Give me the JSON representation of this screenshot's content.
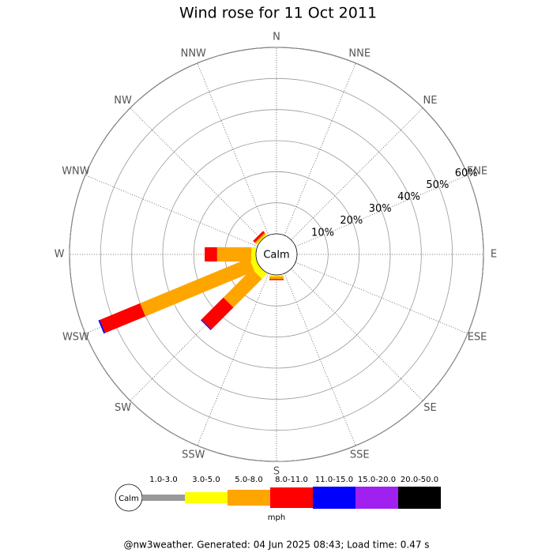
{
  "chart_data": {
    "type": "wind-rose",
    "title": "Wind rose for 11 Oct 2011",
    "directions": [
      "N",
      "NNE",
      "NE",
      "ENE",
      "E",
      "ESE",
      "SE",
      "SSE",
      "S",
      "SSW",
      "SW",
      "WSW",
      "W",
      "WNW",
      "NW",
      "NNW"
    ],
    "rlim": [
      0,
      60
    ],
    "rticks": [
      {
        "value": 10,
        "label": "10%"
      },
      {
        "value": 20,
        "label": "20%"
      },
      {
        "value": 30,
        "label": "30%"
      },
      {
        "value": 40,
        "label": "40%"
      },
      {
        "value": 50,
        "label": "50%"
      },
      {
        "value": 60,
        "label": "60%"
      }
    ],
    "calm_label": "Calm",
    "legend_unit": "mph",
    "series": [
      {
        "name": "1.0-3.0",
        "color": "#999999",
        "values": [
          0,
          0,
          0,
          0,
          0,
          0,
          0,
          0,
          0,
          0,
          0,
          0,
          0,
          0,
          0,
          0
        ]
      },
      {
        "name": "3.0-5.0",
        "color": "#ffff00",
        "values": [
          0,
          0,
          0,
          0,
          0,
          0,
          0,
          0,
          0.5,
          0,
          2.3,
          2,
          1.5,
          0,
          0.5,
          0
        ]
      },
      {
        "name": "5.0-8.0",
        "color": "#ffa500",
        "values": [
          0,
          0,
          0,
          0,
          0,
          0,
          0,
          0,
          0.8,
          0,
          13,
          38,
          11,
          0,
          0.5,
          0
        ]
      },
      {
        "name": "8.0-11.0",
        "color": "#ff0000",
        "values": [
          0,
          0,
          0,
          0,
          0,
          0,
          0,
          0,
          0.4,
          0,
          10,
          14,
          4,
          0,
          0.8,
          0
        ]
      },
      {
        "name": "11.0-15.0",
        "color": "#0000ff",
        "values": [
          0,
          0,
          0,
          0,
          0,
          0,
          0,
          0,
          0,
          0,
          0.3,
          0.5,
          0,
          0,
          0,
          0
        ]
      },
      {
        "name": "15.0-20.0",
        "color": "#a020f0",
        "values": [
          0,
          0,
          0,
          0,
          0,
          0,
          0,
          0,
          0,
          0,
          0,
          0,
          0,
          0,
          0,
          0
        ]
      },
      {
        "name": "20.0-50.0",
        "color": "#000000",
        "values": [
          0,
          0,
          0,
          0,
          0,
          0,
          0,
          0,
          0,
          0,
          0,
          0,
          0,
          0,
          0,
          0
        ]
      }
    ]
  },
  "footer": "@nw3weather. Generated: 04 Jun 2025 08:43; Load time: 0.47 s"
}
